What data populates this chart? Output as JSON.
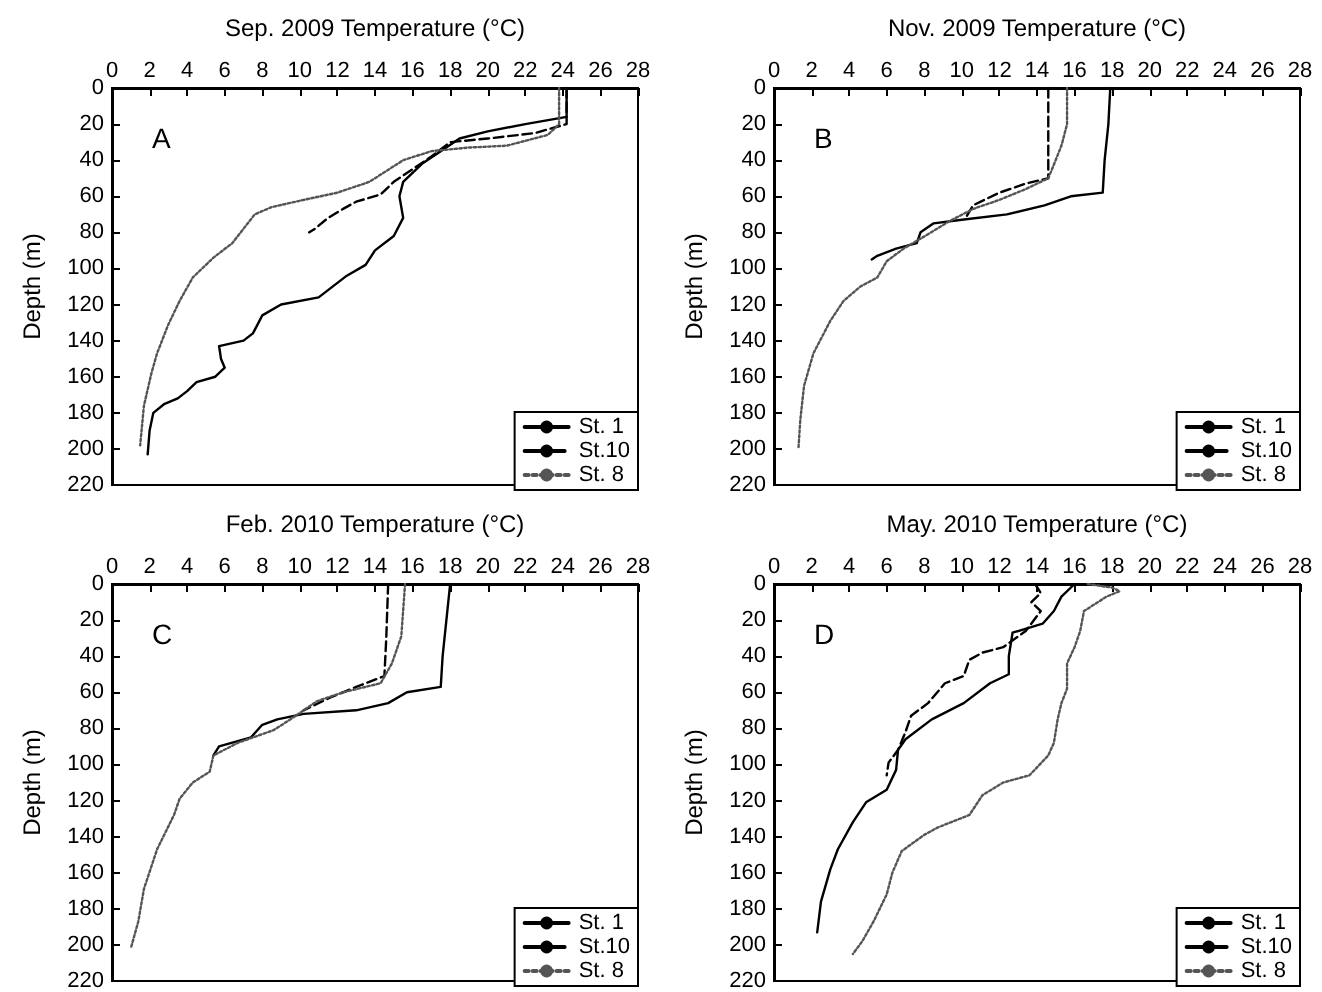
{
  "chart_data": [
    {
      "type": "line",
      "xlabel": "Sep. 2009 Temperature (°C)",
      "ylabel": "Depth (m)",
      "xlim": [
        0,
        28
      ],
      "xticks": [
        0,
        2,
        4,
        6,
        8,
        10,
        12,
        14,
        16,
        18,
        20,
        22,
        24,
        26,
        28
      ],
      "ylim": [
        220,
        0
      ],
      "yticks": [
        0,
        20,
        40,
        60,
        80,
        100,
        120,
        140,
        160,
        180,
        200,
        220
      ],
      "legend": "bottom right",
      "annotations": [
        "A"
      ],
      "series": [
        {
          "name": "St. 1",
          "color": "#000000",
          "line_style": "solid",
          "x": [
            24.2,
            24.2,
            22,
            20,
            18.5,
            17.5,
            16.5,
            15.5,
            15.3,
            15.5,
            15,
            14,
            13.5,
            12.5,
            11,
            9,
            8,
            7.5,
            7,
            5.7,
            5.8,
            6,
            5.5,
            4.5,
            4,
            3.5,
            2.8,
            2.2,
            2,
            1.9
          ],
          "values": [
            0,
            16,
            20,
            24,
            28,
            35,
            42,
            52,
            60,
            72,
            82,
            90,
            98,
            104,
            116,
            120,
            126,
            136,
            140,
            143,
            150,
            155,
            160,
            163,
            168,
            172,
            175,
            180,
            190,
            203
          ]
        },
        {
          "name": "St.10",
          "color": "#000000",
          "line_style": "dashed",
          "x": [
            24.2,
            24.2,
            22.5,
            20,
            18,
            17,
            16,
            15,
            14.3,
            13,
            12.3,
            11.5,
            10.8,
            10.5
          ],
          "values": [
            0,
            20,
            25,
            28,
            30,
            38,
            45,
            52,
            59,
            63,
            67,
            72,
            78,
            80
          ]
        },
        {
          "name": "St. 8",
          "color": "#555555",
          "line_style": "dotted",
          "x": [
            23.8,
            23.8,
            23.2,
            21,
            19,
            17,
            15.5,
            13.7,
            12,
            10.2,
            8.5,
            7.6,
            7,
            6.4,
            5.4,
            4.3,
            3.6,
            3,
            2.4,
            2.1,
            1.7,
            1.5
          ],
          "values": [
            0,
            20,
            26,
            32,
            33,
            35,
            40,
            52,
            58,
            62,
            66,
            70,
            78,
            86,
            94,
            105,
            118,
            131,
            147,
            158,
            176,
            198
          ]
        }
      ]
    },
    {
      "type": "line",
      "xlabel": "Nov. 2009 Temperature (°C)",
      "ylabel": "Depth (m)",
      "xlim": [
        0,
        28
      ],
      "xticks": [
        0,
        2,
        4,
        6,
        8,
        10,
        12,
        14,
        16,
        18,
        20,
        22,
        24,
        26,
        28
      ],
      "ylim": [
        220,
        0
      ],
      "yticks": [
        0,
        20,
        40,
        60,
        80,
        100,
        120,
        140,
        160,
        180,
        200,
        220
      ],
      "legend": "bottom right",
      "annotations": [
        "B"
      ],
      "series": [
        {
          "name": "St. 1",
          "color": "#000000",
          "line_style": "solid",
          "x": [
            17.9,
            17.8,
            17.6,
            17.5,
            15.8,
            14.4,
            12.4,
            10,
            8.5,
            7.8,
            7.6,
            6.5,
            5.5,
            5.2
          ],
          "values": [
            0,
            20,
            40,
            58,
            60,
            65,
            70,
            73,
            75,
            80,
            86,
            89,
            93,
            95
          ]
        },
        {
          "name": "St.10",
          "color": "#000000",
          "line_style": "dashed",
          "x": [
            14.6,
            14.6,
            13.4,
            12,
            10.6,
            10.2
          ],
          "values": [
            0,
            50,
            53,
            58,
            65,
            72
          ]
        },
        {
          "name": "St. 8",
          "color": "#555555",
          "line_style": "dotted",
          "x": [
            15.6,
            15.6,
            15.3,
            14.8,
            14.6,
            13.4,
            12,
            10.6,
            9.3,
            8.2,
            6.9,
            6,
            5.5,
            4.6,
            3.7,
            3,
            2.1,
            1.6,
            1.4,
            1.3
          ],
          "values": [
            0,
            20,
            32,
            45,
            50,
            56,
            62,
            67,
            74,
            81,
            89,
            96,
            105,
            110,
            118,
            129,
            147,
            165,
            184,
            200
          ]
        }
      ]
    },
    {
      "type": "line",
      "xlabel": "Feb. 2010 Temperature (°C)",
      "ylabel": "Depth (m)",
      "xlim": [
        0,
        28
      ],
      "xticks": [
        0,
        2,
        4,
        6,
        8,
        10,
        12,
        14,
        16,
        18,
        20,
        22,
        24,
        26,
        28
      ],
      "ylim": [
        220,
        0
      ],
      "yticks": [
        0,
        20,
        40,
        60,
        80,
        100,
        120,
        140,
        160,
        180,
        200,
        220
      ],
      "legend": "bottom right",
      "annotations": [
        "C"
      ],
      "series": [
        {
          "name": "St. 1",
          "color": "#000000",
          "line_style": "solid",
          "x": [
            18,
            17.8,
            17.6,
            17.5,
            15.7,
            14.7,
            13,
            10.2,
            8.8,
            8,
            7.4,
            5.7,
            5.4
          ],
          "values": [
            0,
            20,
            40,
            57,
            60,
            66,
            70,
            72,
            75,
            78,
            85,
            90,
            95
          ]
        },
        {
          "name": "St.10",
          "color": "#000000",
          "line_style": "dashed",
          "x": [
            14.7,
            14.6,
            14.5,
            13,
            11.6,
            10.8,
            10.2
          ],
          "values": [
            0,
            30,
            51,
            57,
            63,
            67,
            70
          ]
        },
        {
          "name": "St. 8",
          "color": "#555555",
          "line_style": "dotted",
          "x": [
            15.6,
            15.4,
            14.9,
            14.3,
            12.3,
            10.9,
            9.5,
            8.6,
            6.7,
            5.4,
            5.2,
            4.3,
            3.6,
            3.3,
            2.4,
            1.7,
            1.4,
            1
          ],
          "values": [
            0,
            29,
            44,
            55,
            60,
            65,
            75,
            81,
            88,
            95,
            104,
            110,
            119,
            128,
            147,
            169,
            187,
            202
          ]
        }
      ]
    },
    {
      "type": "line",
      "xlabel": "May. 2010 Temperature (°C)",
      "ylabel": "Depth (m)",
      "xlim": [
        0,
        28
      ],
      "xticks": [
        0,
        2,
        4,
        6,
        8,
        10,
        12,
        14,
        16,
        18,
        20,
        22,
        24,
        26,
        28
      ],
      "ylim": [
        220,
        0
      ],
      "yticks": [
        0,
        20,
        40,
        60,
        80,
        100,
        120,
        140,
        160,
        180,
        200,
        220
      ],
      "legend": "bottom right",
      "annotations": [
        "D"
      ],
      "series": [
        {
          "name": "St. 1",
          "color": "#000000",
          "line_style": "solid",
          "x": [
            16,
            15.3,
            14.9,
            14.3,
            12.7,
            12.5,
            12.5,
            11.5,
            10.1,
            8.4,
            7,
            6.6,
            6.5,
            6,
            4.9,
            4.2,
            3.4,
            3,
            2.5,
            2.3
          ],
          "values": [
            0,
            7,
            15,
            22,
            27,
            40,
            50,
            55,
            66,
            75,
            86,
            92,
            103,
            114,
            121,
            132,
            147,
            158,
            176,
            193
          ]
        },
        {
          "name": "St.10",
          "color": "#000000",
          "line_style": "dashed",
          "x": [
            13.9,
            14.2,
            13.7,
            14.2,
            13.4,
            12.2,
            11.1,
            10.4,
            10.1,
            9.1,
            8.2,
            7.3,
            7,
            6.6,
            6.1,
            6
          ],
          "values": [
            0,
            5,
            10,
            15,
            26,
            35,
            38,
            42,
            51,
            55,
            66,
            73,
            82,
            92,
            99,
            106
          ]
        },
        {
          "name": "St. 8",
          "color": "#555555",
          "line_style": "dotted",
          "x": [
            16.7,
            18,
            18.4,
            17.7,
            16.5,
            16.3,
            16,
            15.6,
            15.6,
            15.3,
            15.1,
            14.9,
            14.6,
            13.6,
            12.2,
            11.1,
            10.4,
            8.7,
            8,
            6.8,
            6.3,
            6,
            5.3,
            4.7,
            4.2
          ],
          "values": [
            0,
            2,
            4,
            7,
            15,
            26,
            35,
            44,
            58,
            66,
            75,
            88,
            95,
            106,
            110,
            117,
            128,
            135,
            139,
            148,
            160,
            172,
            187,
            198,
            205
          ]
        }
      ]
    }
  ]
}
